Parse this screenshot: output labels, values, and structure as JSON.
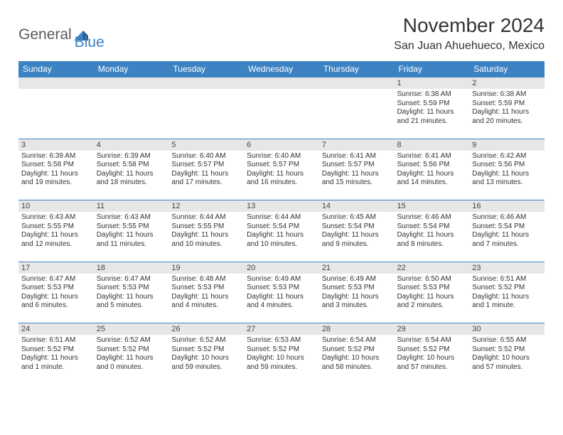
{
  "brand": {
    "text1": "General",
    "text2": "Blue"
  },
  "title": "November 2024",
  "location": "San Juan Ahuehueco, Mexico",
  "colors": {
    "header_bg": "#3d83c3",
    "header_fg": "#ffffff",
    "daynum_bg": "#e7e7e7",
    "row_border": "#3d83c3",
    "text": "#333333",
    "logo_gray": "#5b5b5b",
    "logo_blue": "#3d83c3"
  },
  "fonts": {
    "title_size_pt": 21,
    "location_size_pt": 12,
    "dayhead_size_pt": 9,
    "daynum_size_pt": 8,
    "detail_size_pt": 7.5
  },
  "day_headers": [
    "Sunday",
    "Monday",
    "Tuesday",
    "Wednesday",
    "Thursday",
    "Friday",
    "Saturday"
  ],
  "weeks": [
    [
      null,
      null,
      null,
      null,
      null,
      {
        "n": "1",
        "sr": "Sunrise: 6:38 AM",
        "ss": "Sunset: 5:59 PM",
        "dl1": "Daylight: 11 hours",
        "dl2": "and 21 minutes."
      },
      {
        "n": "2",
        "sr": "Sunrise: 6:38 AM",
        "ss": "Sunset: 5:59 PM",
        "dl1": "Daylight: 11 hours",
        "dl2": "and 20 minutes."
      }
    ],
    [
      {
        "n": "3",
        "sr": "Sunrise: 6:39 AM",
        "ss": "Sunset: 5:58 PM",
        "dl1": "Daylight: 11 hours",
        "dl2": "and 19 minutes."
      },
      {
        "n": "4",
        "sr": "Sunrise: 6:39 AM",
        "ss": "Sunset: 5:58 PM",
        "dl1": "Daylight: 11 hours",
        "dl2": "and 18 minutes."
      },
      {
        "n": "5",
        "sr": "Sunrise: 6:40 AM",
        "ss": "Sunset: 5:57 PM",
        "dl1": "Daylight: 11 hours",
        "dl2": "and 17 minutes."
      },
      {
        "n": "6",
        "sr": "Sunrise: 6:40 AM",
        "ss": "Sunset: 5:57 PM",
        "dl1": "Daylight: 11 hours",
        "dl2": "and 16 minutes."
      },
      {
        "n": "7",
        "sr": "Sunrise: 6:41 AM",
        "ss": "Sunset: 5:57 PM",
        "dl1": "Daylight: 11 hours",
        "dl2": "and 15 minutes."
      },
      {
        "n": "8",
        "sr": "Sunrise: 6:41 AM",
        "ss": "Sunset: 5:56 PM",
        "dl1": "Daylight: 11 hours",
        "dl2": "and 14 minutes."
      },
      {
        "n": "9",
        "sr": "Sunrise: 6:42 AM",
        "ss": "Sunset: 5:56 PM",
        "dl1": "Daylight: 11 hours",
        "dl2": "and 13 minutes."
      }
    ],
    [
      {
        "n": "10",
        "sr": "Sunrise: 6:43 AM",
        "ss": "Sunset: 5:55 PM",
        "dl1": "Daylight: 11 hours",
        "dl2": "and 12 minutes."
      },
      {
        "n": "11",
        "sr": "Sunrise: 6:43 AM",
        "ss": "Sunset: 5:55 PM",
        "dl1": "Daylight: 11 hours",
        "dl2": "and 11 minutes."
      },
      {
        "n": "12",
        "sr": "Sunrise: 6:44 AM",
        "ss": "Sunset: 5:55 PM",
        "dl1": "Daylight: 11 hours",
        "dl2": "and 10 minutes."
      },
      {
        "n": "13",
        "sr": "Sunrise: 6:44 AM",
        "ss": "Sunset: 5:54 PM",
        "dl1": "Daylight: 11 hours",
        "dl2": "and 10 minutes."
      },
      {
        "n": "14",
        "sr": "Sunrise: 6:45 AM",
        "ss": "Sunset: 5:54 PM",
        "dl1": "Daylight: 11 hours",
        "dl2": "and 9 minutes."
      },
      {
        "n": "15",
        "sr": "Sunrise: 6:46 AM",
        "ss": "Sunset: 5:54 PM",
        "dl1": "Daylight: 11 hours",
        "dl2": "and 8 minutes."
      },
      {
        "n": "16",
        "sr": "Sunrise: 6:46 AM",
        "ss": "Sunset: 5:54 PM",
        "dl1": "Daylight: 11 hours",
        "dl2": "and 7 minutes."
      }
    ],
    [
      {
        "n": "17",
        "sr": "Sunrise: 6:47 AM",
        "ss": "Sunset: 5:53 PM",
        "dl1": "Daylight: 11 hours",
        "dl2": "and 6 minutes."
      },
      {
        "n": "18",
        "sr": "Sunrise: 6:47 AM",
        "ss": "Sunset: 5:53 PM",
        "dl1": "Daylight: 11 hours",
        "dl2": "and 5 minutes."
      },
      {
        "n": "19",
        "sr": "Sunrise: 6:48 AM",
        "ss": "Sunset: 5:53 PM",
        "dl1": "Daylight: 11 hours",
        "dl2": "and 4 minutes."
      },
      {
        "n": "20",
        "sr": "Sunrise: 6:49 AM",
        "ss": "Sunset: 5:53 PM",
        "dl1": "Daylight: 11 hours",
        "dl2": "and 4 minutes."
      },
      {
        "n": "21",
        "sr": "Sunrise: 6:49 AM",
        "ss": "Sunset: 5:53 PM",
        "dl1": "Daylight: 11 hours",
        "dl2": "and 3 minutes."
      },
      {
        "n": "22",
        "sr": "Sunrise: 6:50 AM",
        "ss": "Sunset: 5:53 PM",
        "dl1": "Daylight: 11 hours",
        "dl2": "and 2 minutes."
      },
      {
        "n": "23",
        "sr": "Sunrise: 6:51 AM",
        "ss": "Sunset: 5:52 PM",
        "dl1": "Daylight: 11 hours",
        "dl2": "and 1 minute."
      }
    ],
    [
      {
        "n": "24",
        "sr": "Sunrise: 6:51 AM",
        "ss": "Sunset: 5:52 PM",
        "dl1": "Daylight: 11 hours",
        "dl2": "and 1 minute."
      },
      {
        "n": "25",
        "sr": "Sunrise: 6:52 AM",
        "ss": "Sunset: 5:52 PM",
        "dl1": "Daylight: 11 hours",
        "dl2": "and 0 minutes."
      },
      {
        "n": "26",
        "sr": "Sunrise: 6:52 AM",
        "ss": "Sunset: 5:52 PM",
        "dl1": "Daylight: 10 hours",
        "dl2": "and 59 minutes."
      },
      {
        "n": "27",
        "sr": "Sunrise: 6:53 AM",
        "ss": "Sunset: 5:52 PM",
        "dl1": "Daylight: 10 hours",
        "dl2": "and 59 minutes."
      },
      {
        "n": "28",
        "sr": "Sunrise: 6:54 AM",
        "ss": "Sunset: 5:52 PM",
        "dl1": "Daylight: 10 hours",
        "dl2": "and 58 minutes."
      },
      {
        "n": "29",
        "sr": "Sunrise: 6:54 AM",
        "ss": "Sunset: 5:52 PM",
        "dl1": "Daylight: 10 hours",
        "dl2": "and 57 minutes."
      },
      {
        "n": "30",
        "sr": "Sunrise: 6:55 AM",
        "ss": "Sunset: 5:52 PM",
        "dl1": "Daylight: 10 hours",
        "dl2": "and 57 minutes."
      }
    ]
  ]
}
